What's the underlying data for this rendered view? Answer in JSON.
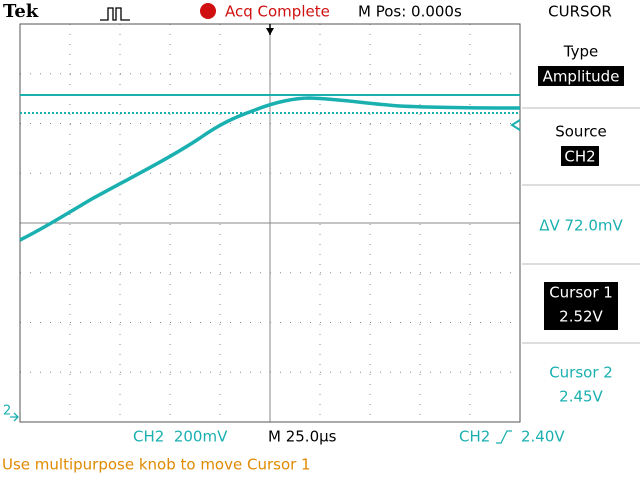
{
  "header": {
    "brand": "Tek",
    "status": "Acq Complete",
    "position": "M Pos: 0.000s",
    "menu_title": "CURSOR"
  },
  "menu": {
    "type_label": "Type",
    "type_value": "Amplitude",
    "source_label": "Source",
    "source_value": "CH2",
    "delta": "ΔV 72.0mV",
    "cursor1_label": "Cursor 1",
    "cursor1_value": "2.52V",
    "cursor2_label": "Cursor 2",
    "cursor2_value": "2.45V"
  },
  "footer": {
    "channel_scale": "CH2  200mV",
    "timebase": "M 25.0µs",
    "trigger_source": "CH2",
    "trigger_level": "2.40V",
    "marker": "2",
    "message": "Use multipurpose knob to move Cursor 1"
  }
}
